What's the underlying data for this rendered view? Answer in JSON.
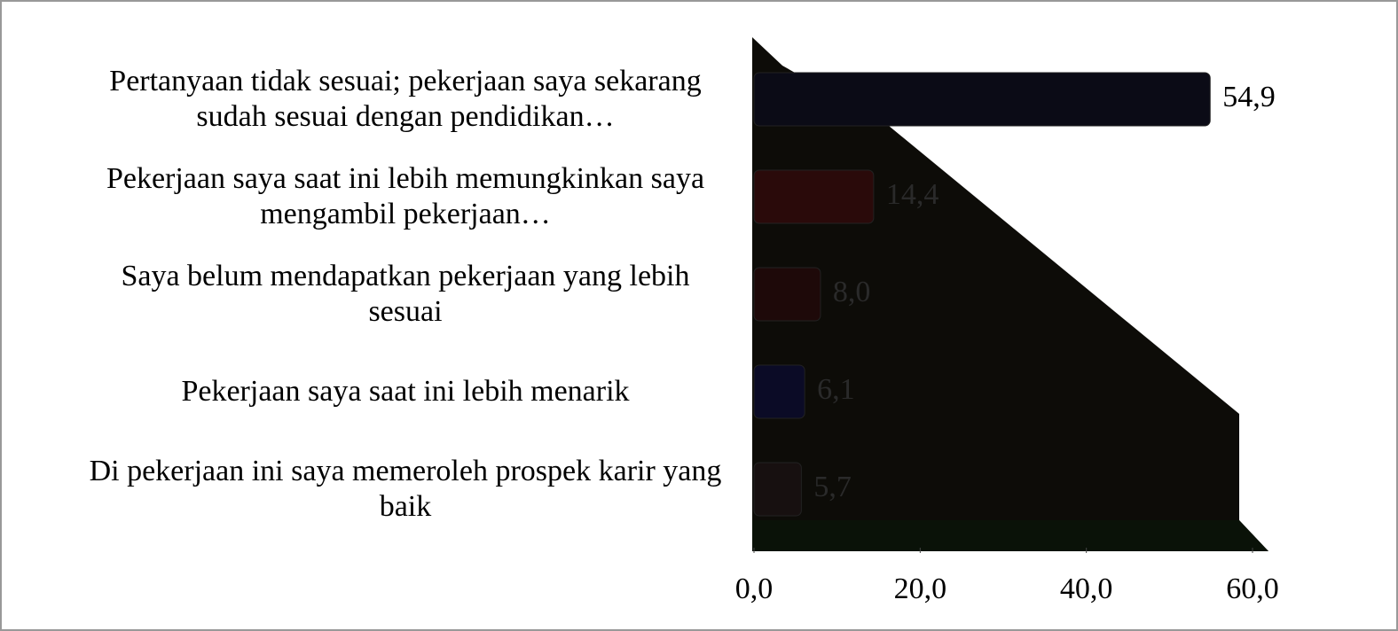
{
  "chart_data": {
    "type": "bar",
    "orientation": "horizontal",
    "categories": [
      "Pertanyaan tidak sesuai; pekerjaan saya sekarang sudah sesuai dengan pendidikan…",
      "Pekerjaan saya saat ini lebih memungkinkan saya mengambil pekerjaan…",
      "Saya belum mendapatkan pekerjaan yang lebih sesuai",
      "Pekerjaan saya saat ini lebih menarik",
      "Di pekerjaan ini saya memeroleh prospek karir yang baik"
    ],
    "values": [
      54.9,
      14.4,
      8.0,
      6.1,
      5.7
    ],
    "value_labels": [
      "54,9",
      "14,4",
      "8,0",
      "6,1",
      "5,7"
    ],
    "colors": [
      "#0b0b16",
      "#2a0a0a",
      "#1e0909",
      "#0b0b26",
      "#171010"
    ],
    "xlim": [
      0,
      60
    ],
    "xticks": [
      {
        "value": 0,
        "label": "0,0"
      },
      {
        "value": 20,
        "label": "20,0"
      },
      {
        "value": 40,
        "label": "40,0"
      },
      {
        "value": 60,
        "label": "60,0"
      }
    ]
  }
}
